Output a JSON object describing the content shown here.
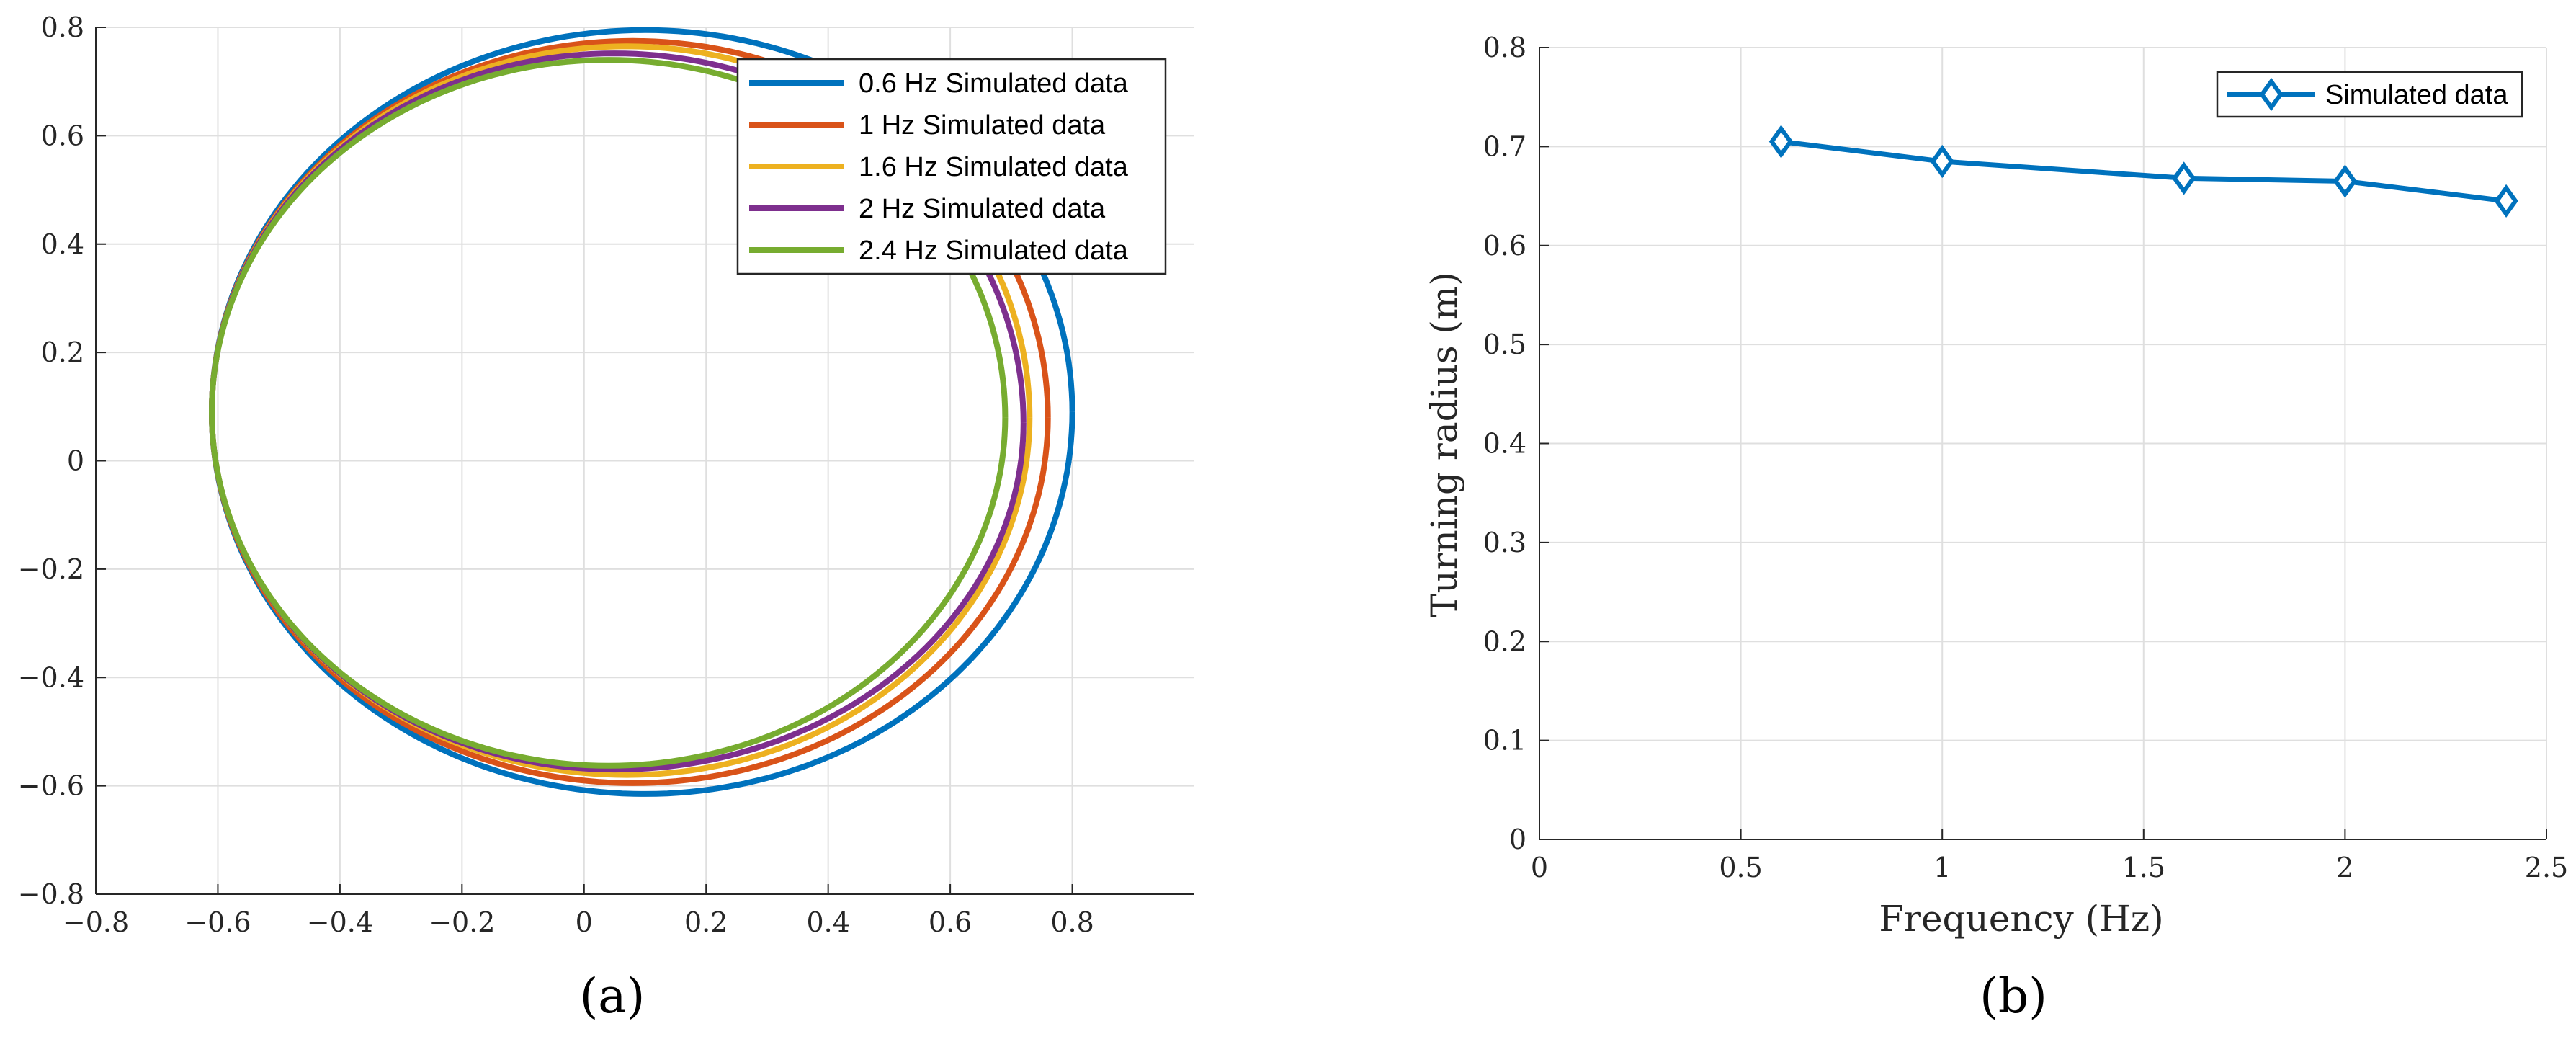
{
  "chart_data": [
    {
      "id": "a",
      "type": "line",
      "panel_label": "(a)",
      "title": "",
      "xlabel": "",
      "ylabel": "",
      "xlim": [
        -0.8,
        1.0
      ],
      "ylim": [
        -0.8,
        0.8
      ],
      "xticks": [
        -0.8,
        -0.6,
        -0.4,
        -0.2,
        0,
        0.2,
        0.4,
        0.6,
        0.8
      ],
      "yticks": [
        -0.8,
        -0.6,
        -0.4,
        -0.2,
        0,
        0.2,
        0.4,
        0.6,
        0.8
      ],
      "xtick_labels": [
        "−0.8",
        "−0.6",
        "−0.4",
        "−0.2",
        "0",
        "0.2",
        "0.4",
        "0.6",
        "0.8"
      ],
      "ytick_labels": [
        "−0.8",
        "−0.6",
        "−0.4",
        "−0.2",
        "0",
        "0.2",
        "0.4",
        "0.6",
        "0.8"
      ],
      "grid": true,
      "legend_position": "top-right",
      "series": [
        {
          "name": "0.6 Hz Simulated data",
          "color": "#0072BD",
          "x_min": -0.61,
          "x_max": 0.8,
          "y_min": -0.615,
          "y_max": 0.795,
          "x_at_top": 0.1,
          "x_at_bottom": 0.1,
          "y_at_left": 0.09,
          "y_at_right": 0.09
        },
        {
          "name": "1 Hz Simulated data",
          "color": "#D95319",
          "x_min": -0.61,
          "x_max": 0.76,
          "y_min": -0.595,
          "y_max": 0.775,
          "x_at_top": 0.08,
          "x_at_bottom": 0.08,
          "y_at_left": 0.09,
          "y_at_right": 0.08
        },
        {
          "name": "1.6 Hz Simulated data",
          "color": "#EDB120",
          "x_min": -0.61,
          "x_max": 0.73,
          "y_min": -0.58,
          "y_max": 0.765,
          "x_at_top": 0.07,
          "x_at_bottom": 0.07,
          "y_at_left": 0.09,
          "y_at_right": 0.08
        },
        {
          "name": "2 Hz Simulated data",
          "color": "#7E2F8E",
          "x_min": -0.61,
          "x_max": 0.72,
          "y_min": -0.57,
          "y_max": 0.752,
          "x_at_top": 0.05,
          "x_at_bottom": 0.05,
          "y_at_left": 0.09,
          "y_at_right": 0.07
        },
        {
          "name": "2.4 Hz Simulated data",
          "color": "#77AC30",
          "x_min": -0.61,
          "x_max": 0.69,
          "y_min": -0.563,
          "y_max": 0.74,
          "x_at_top": 0.04,
          "x_at_bottom": 0.04,
          "y_at_left": 0.09,
          "y_at_right": 0.08
        }
      ]
    },
    {
      "id": "b",
      "type": "line",
      "panel_label": "(b)",
      "title": "",
      "xlabel": "Frequency (Hz)",
      "ylabel": "Turning radius (m)",
      "xlim": [
        0,
        2.5
      ],
      "ylim": [
        0,
        0.8
      ],
      "xticks": [
        0,
        0.5,
        1,
        1.5,
        2,
        2.5
      ],
      "yticks": [
        0,
        0.1,
        0.2,
        0.3,
        0.4,
        0.5,
        0.6,
        0.7,
        0.8
      ],
      "xtick_labels": [
        "0",
        "0.5",
        "1",
        "1.5",
        "2",
        "2.5"
      ],
      "ytick_labels": [
        "0",
        "0.1",
        "0.2",
        "0.3",
        "0.4",
        "0.5",
        "0.6",
        "0.7",
        "0.8"
      ],
      "grid": true,
      "legend_position": "top-right",
      "series": [
        {
          "name": "Simulated data",
          "color": "#0072BD",
          "marker": "diamond",
          "x": [
            0.6,
            1.0,
            1.6,
            2.0,
            2.4
          ],
          "y": [
            0.705,
            0.685,
            0.668,
            0.665,
            0.645
          ]
        }
      ]
    }
  ]
}
